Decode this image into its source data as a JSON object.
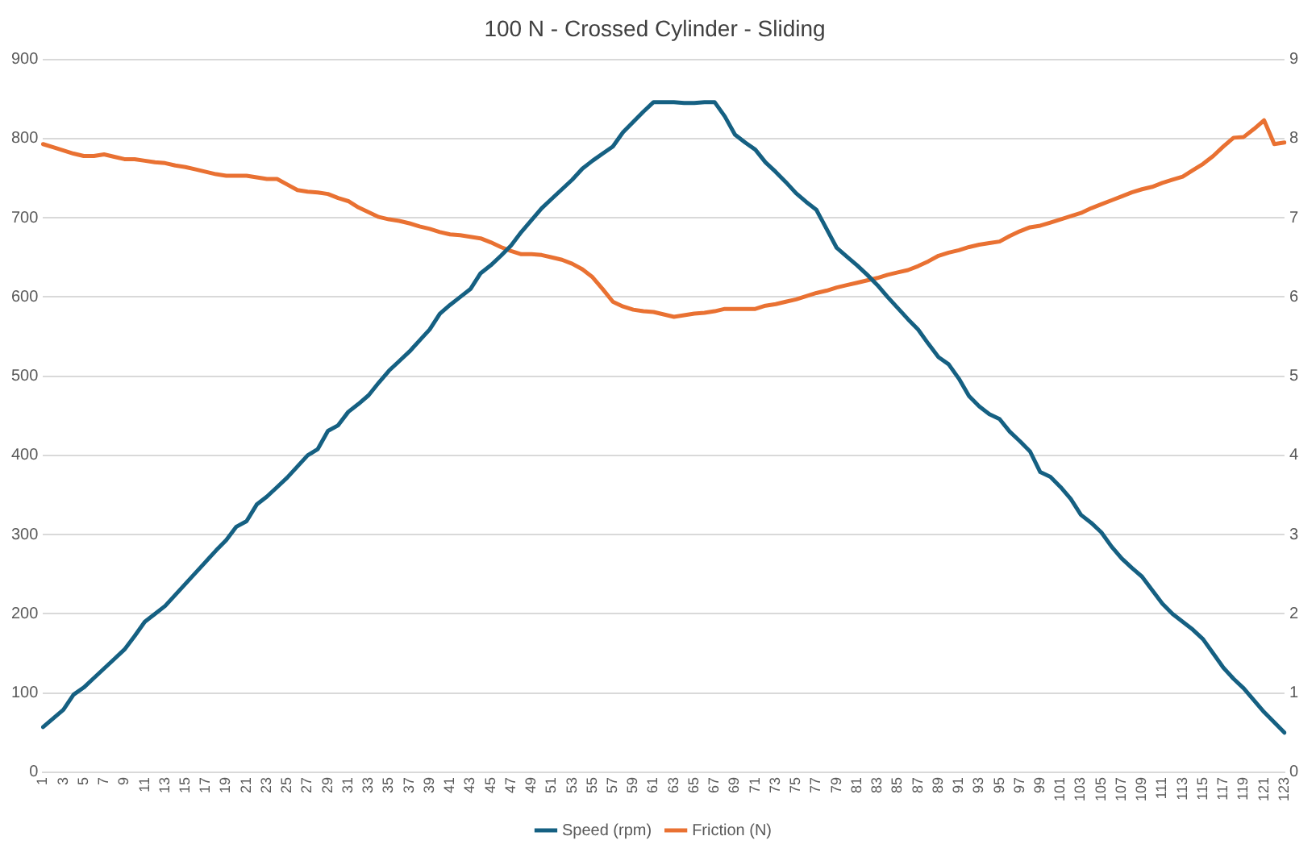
{
  "chart_data": {
    "type": "line",
    "title": "100 N - Crossed Cylinder - Sliding",
    "categories": [
      "1",
      null,
      "3",
      null,
      "5",
      null,
      "7",
      null,
      "9",
      null,
      "11",
      null,
      "13",
      null,
      "15",
      null,
      "17",
      null,
      "19",
      null,
      "21",
      null,
      "23",
      null,
      "25",
      null,
      "27",
      null,
      "29",
      null,
      "31",
      null,
      "33",
      null,
      "35",
      null,
      "37",
      null,
      "39",
      null,
      "41",
      null,
      "43",
      null,
      "45",
      null,
      "47",
      null,
      "49",
      null,
      "51",
      null,
      "53",
      null,
      "55",
      null,
      "57",
      null,
      "59",
      null,
      "61",
      null,
      "63",
      null,
      "65",
      null,
      "67",
      null,
      "69",
      null,
      "71",
      null,
      "73",
      null,
      "75",
      null,
      "77",
      null,
      "79",
      null,
      "81",
      null,
      "83",
      null,
      "85",
      null,
      "87",
      null,
      "89",
      null,
      "91",
      null,
      "93",
      null,
      "95",
      null,
      "97",
      null,
      "99",
      null,
      "101",
      null,
      "103",
      null,
      "105",
      null,
      "107",
      null,
      "109",
      null,
      "111",
      null,
      "113",
      null,
      "115",
      null,
      "117",
      null,
      "119",
      null,
      "121",
      null,
      "123"
    ],
    "series": [
      {
        "name": "Speed (rpm)",
        "color": "#156082",
        "values": [
          57,
          68,
          79,
          98,
          107,
          119,
          131,
          143,
          155,
          172,
          190,
          200,
          210,
          224,
          238,
          252,
          266,
          280,
          293,
          310,
          317,
          338,
          348,
          360,
          372,
          386,
          400,
          408,
          431,
          438,
          455,
          465,
          476,
          492,
          507,
          519,
          531,
          545,
          559,
          579,
          590,
          600,
          610,
          630,
          640,
          652,
          665,
          682,
          697,
          712,
          724,
          736,
          748,
          762,
          772,
          781,
          790,
          808,
          821,
          834,
          846,
          846,
          846,
          845,
          845,
          846,
          846,
          828,
          805,
          795,
          786,
          770,
          758,
          745,
          731,
          720,
          710,
          686,
          662,
          651,
          640,
          628,
          615,
          600,
          586,
          572,
          559,
          541,
          524,
          515,
          497,
          475,
          462,
          452,
          446,
          430,
          418,
          405,
          379,
          373,
          360,
          345,
          325,
          315,
          303,
          285,
          270,
          258,
          247,
          230,
          213,
          200,
          190,
          180,
          168,
          150,
          132,
          118,
          106,
          91,
          76,
          63,
          50
        ]
      },
      {
        "name": "Friction (N)",
        "color": "#e97132",
        "axis": "y2",
        "values": [
          7.93,
          7.89,
          7.85,
          7.81,
          7.78,
          7.78,
          7.8,
          7.77,
          7.74,
          7.74,
          7.72,
          7.7,
          7.69,
          7.66,
          7.64,
          7.61,
          7.58,
          7.55,
          7.53,
          7.53,
          7.53,
          7.51,
          7.49,
          7.49,
          7.42,
          7.35,
          7.33,
          7.32,
          7.3,
          7.25,
          7.21,
          7.13,
          7.07,
          7.01,
          6.98,
          6.96,
          6.93,
          6.89,
          6.86,
          6.82,
          6.79,
          6.78,
          6.76,
          6.74,
          6.69,
          6.63,
          6.58,
          6.54,
          6.54,
          6.53,
          6.5,
          6.47,
          6.42,
          6.35,
          6.25,
          6.1,
          5.94,
          5.88,
          5.84,
          5.82,
          5.81,
          5.78,
          5.75,
          5.77,
          5.79,
          5.8,
          5.82,
          5.85,
          5.85,
          5.85,
          5.85,
          5.89,
          5.91,
          5.94,
          5.97,
          6.01,
          6.05,
          6.08,
          6.12,
          6.15,
          6.18,
          6.21,
          6.24,
          6.28,
          6.31,
          6.34,
          6.39,
          6.45,
          6.52,
          6.56,
          6.59,
          6.63,
          6.66,
          6.68,
          6.7,
          6.77,
          6.83,
          6.88,
          6.9,
          6.94,
          6.98,
          7.02,
          7.06,
          7.12,
          7.17,
          7.22,
          7.27,
          7.32,
          7.36,
          7.39,
          7.44,
          7.48,
          7.52,
          7.6,
          7.68,
          7.78,
          7.9,
          8.01,
          8.02,
          8.12,
          8.23,
          7.93,
          7.95
        ]
      }
    ],
    "ylim": [
      0,
      900
    ],
    "yticks": [
      0,
      100,
      200,
      300,
      400,
      500,
      600,
      700,
      800,
      900
    ],
    "y2lim": [
      0,
      9
    ],
    "y2ticks": [
      0,
      1,
      2,
      3,
      4,
      5,
      6,
      7,
      8,
      9
    ],
    "grid": "y",
    "legend": "bottom",
    "marker": "none",
    "line_style": "solid"
  }
}
